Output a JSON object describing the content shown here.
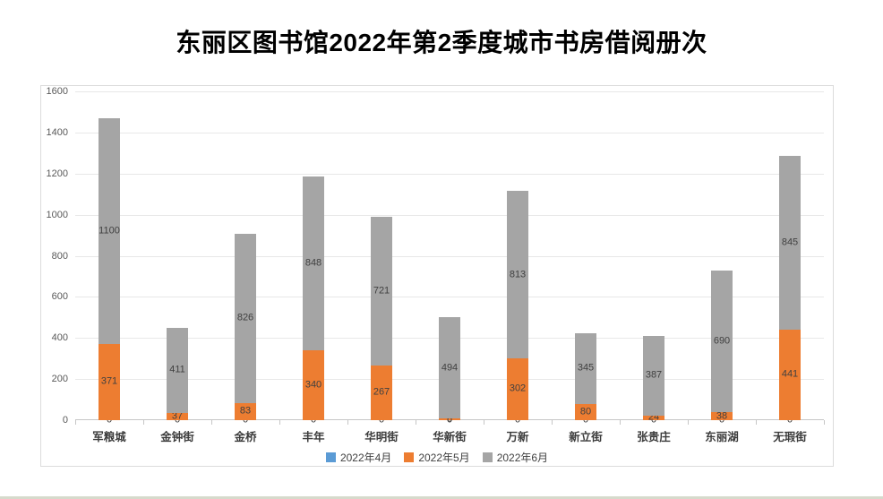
{
  "page": {
    "title": "东丽区图书馆2022年第2季度城市书房借阅册次"
  },
  "chart_data": {
    "type": "bar",
    "stacked": true,
    "title": "东丽区图书馆2022年第2季度城市书房借阅册次",
    "categories": [
      "军粮城",
      "金钟街",
      "金桥",
      "丰年",
      "华明街",
      "华新街",
      "万新",
      "新立街",
      "张贵庄",
      "东丽湖",
      "无瑕街"
    ],
    "series": [
      {
        "name": "2022年4月",
        "color": "#5B9BD5",
        "values": [
          0,
          0,
          0,
          0,
          0,
          0,
          0,
          0,
          0,
          0,
          0
        ]
      },
      {
        "name": "2022年5月",
        "color": "#ED7D31",
        "values": [
          371,
          37,
          83,
          340,
          267,
          8,
          302,
          80,
          24,
          38,
          441
        ]
      },
      {
        "name": "2022年6月",
        "color": "#A5A5A5",
        "values": [
          1100,
          411,
          826,
          848,
          721,
          494,
          813,
          345,
          387,
          690,
          845
        ]
      }
    ],
    "totals": [
      1471,
      448,
      909,
      1188,
      988,
      502,
      1115,
      425,
      411,
      728,
      1286
    ],
    "xlabel": "",
    "ylabel": "",
    "ylim": [
      0,
      1600
    ],
    "ytick_step": 200,
    "yticks": [
      0,
      200,
      400,
      600,
      800,
      1000,
      1200,
      1400,
      1600
    ],
    "grid": true,
    "legend_position": "bottom",
    "data_labels": true
  }
}
